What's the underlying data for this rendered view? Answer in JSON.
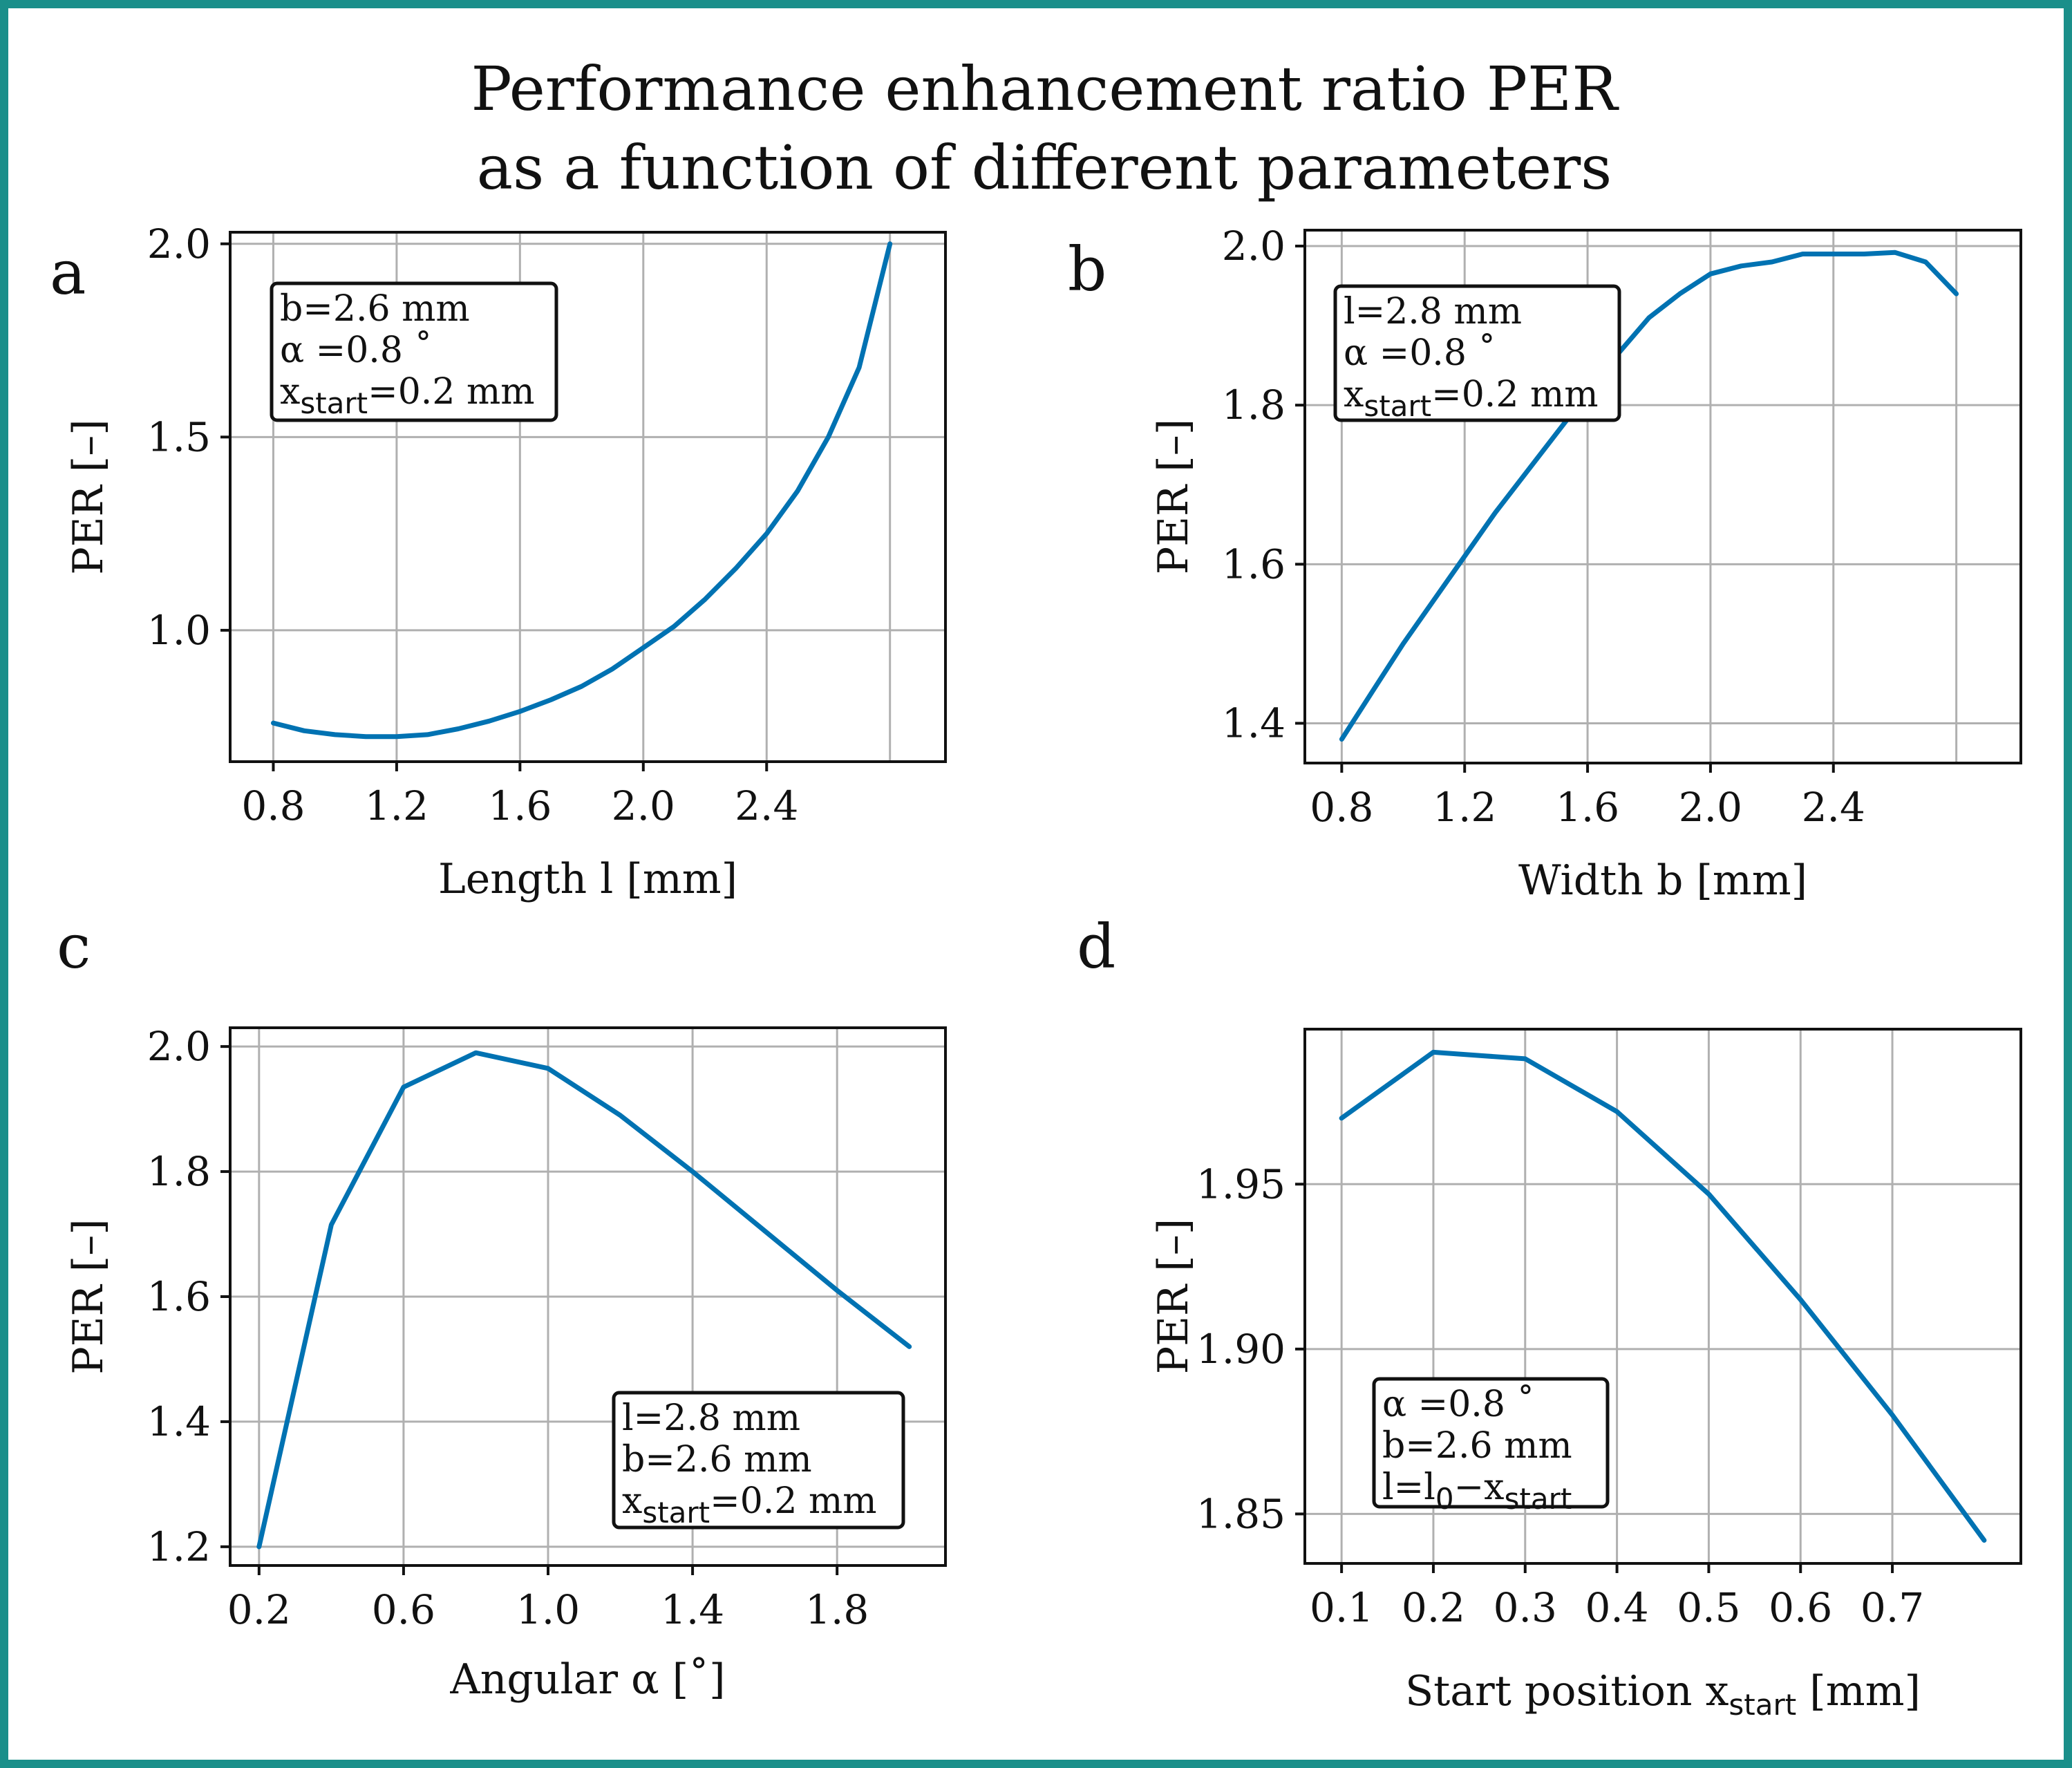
{
  "figure": {
    "title_line1": "Performance enhancement ratio PER",
    "title_line2": "as a function of different parameters",
    "line_color": "#0072b2",
    "border_color": "#1a8f8a"
  },
  "chart_data": [
    {
      "id": "a",
      "panel_label": "a",
      "type": "line",
      "xlabel": "Length l [mm]",
      "ylabel": "PER  [–]",
      "xlim": [
        0.66,
        2.98
      ],
      "ylim": [
        0.66,
        2.03
      ],
      "xticks": [
        0.8,
        1.2,
        1.6,
        2.0,
        2.4
      ],
      "xtick_labels": [
        "0.8",
        "1.2",
        "1.6",
        "2.0",
        "2.4"
      ],
      "yticks": [
        1.0,
        1.5,
        2.0
      ],
      "ytick_labels": [
        "1.0",
        "1.5",
        "2.0"
      ],
      "x_grid": [
        0.8,
        1.2,
        1.6,
        2.0,
        2.4,
        2.8
      ],
      "y_grid": [
        1.0,
        1.5,
        2.0
      ],
      "grid": true,
      "annotation_position": "top-left",
      "annotation": [
        {
          "main": "b=2.6 mm",
          "sub": ""
        },
        {
          "main": "α =0.8 ˚",
          "sub": ""
        },
        {
          "main": "x",
          "sub": "start",
          "tail": "=0.2 mm"
        }
      ],
      "series": [
        {
          "x": [
            0.8,
            0.9,
            1.0,
            1.1,
            1.2,
            1.3,
            1.4,
            1.5,
            1.6,
            1.7,
            1.8,
            1.9,
            2.0,
            2.1,
            2.2,
            2.3,
            2.4,
            2.5,
            2.6,
            2.7,
            2.8
          ],
          "y": [
            0.76,
            0.74,
            0.73,
            0.725,
            0.725,
            0.73,
            0.745,
            0.765,
            0.79,
            0.82,
            0.855,
            0.9,
            0.955,
            1.01,
            1.08,
            1.16,
            1.25,
            1.36,
            1.5,
            1.68,
            2.0
          ]
        }
      ]
    },
    {
      "id": "b",
      "panel_label": "b",
      "type": "line",
      "xlabel": "Width b [mm]",
      "ylabel": "PER  [–]",
      "xlim": [
        0.68,
        3.01
      ],
      "ylim": [
        1.35,
        2.02
      ],
      "xticks": [
        0.8,
        1.2,
        1.6,
        2.0,
        2.4
      ],
      "xtick_labels": [
        "0.8",
        "1.2",
        "1.6",
        "2.0",
        "2.4"
      ],
      "yticks": [
        1.4,
        1.6,
        1.8,
        2.0
      ],
      "ytick_labels": [
        "1.4",
        "1.6",
        "1.8",
        "2.0"
      ],
      "x_grid": [
        0.8,
        1.2,
        1.6,
        2.0,
        2.4,
        2.8
      ],
      "y_grid": [
        1.4,
        1.6,
        1.8,
        2.0
      ],
      "grid": true,
      "annotation_position": "top-left",
      "annotation": [
        {
          "main": "l=2.8 mm",
          "sub": ""
        },
        {
          "main": "α =0.8 ˚",
          "sub": ""
        },
        {
          "main": "x",
          "sub": "start",
          "tail": "=0.2 mm"
        }
      ],
      "series": [
        {
          "x": [
            0.8,
            0.9,
            1.0,
            1.1,
            1.2,
            1.3,
            1.4,
            1.5,
            1.6,
            1.7,
            1.8,
            1.9,
            2.0,
            2.1,
            2.2,
            2.3,
            2.4,
            2.5,
            2.6,
            2.7,
            2.8
          ],
          "y": [
            1.38,
            1.44,
            1.5,
            1.555,
            1.61,
            1.665,
            1.715,
            1.765,
            1.815,
            1.865,
            1.91,
            1.94,
            1.965,
            1.975,
            1.98,
            1.99,
            1.99,
            1.99,
            1.992,
            1.98,
            1.94
          ]
        }
      ]
    },
    {
      "id": "c",
      "panel_label": "c",
      "type": "line",
      "xlabel": "Angular  α  [˚]",
      "ylabel": "PER  [–]",
      "xlim": [
        0.12,
        2.1
      ],
      "ylim": [
        1.17,
        2.03
      ],
      "xticks": [
        0.2,
        0.6,
        1.0,
        1.4,
        1.8
      ],
      "xtick_labels": [
        "0.2",
        "0.6",
        "1.0",
        "1.4",
        "1.8"
      ],
      "yticks": [
        1.2,
        1.4,
        1.6,
        1.8,
        2.0
      ],
      "ytick_labels": [
        "1.2",
        "1.4",
        "1.6",
        "1.8",
        "2.0"
      ],
      "x_grid": [
        0.2,
        0.6,
        1.0,
        1.4,
        1.8
      ],
      "y_grid": [
        1.2,
        1.4,
        1.6,
        1.8,
        2.0
      ],
      "grid": true,
      "annotation_position": "bottom-right",
      "annotation": [
        {
          "main": "l=2.8 mm",
          "sub": ""
        },
        {
          "main": "b=2.6 mm",
          "sub": ""
        },
        {
          "main": "x",
          "sub": "start",
          "tail": "=0.2 mm"
        }
      ],
      "series": [
        {
          "x": [
            0.2,
            0.4,
            0.6,
            0.8,
            1.0,
            1.2,
            1.4,
            1.6,
            1.8,
            2.0
          ],
          "y": [
            1.2,
            1.715,
            1.935,
            1.99,
            1.965,
            1.89,
            1.8,
            1.705,
            1.61,
            1.52
          ]
        }
      ]
    },
    {
      "id": "d",
      "panel_label": "d",
      "type": "line",
      "xlabel": "Start position x",
      "xlabel_sub": "start",
      "xlabel_tail": " [mm]",
      "ylabel": "PER  [–]",
      "xlim": [
        0.06,
        0.84
      ],
      "ylim": [
        1.835,
        1.997
      ],
      "xticks": [
        0.1,
        0.2,
        0.3,
        0.4,
        0.5,
        0.6,
        0.7
      ],
      "xtick_labels": [
        "0.1",
        "0.2",
        "0.3",
        "0.4",
        "0.5",
        "0.6",
        "0.7"
      ],
      "yticks": [
        1.85,
        1.9,
        1.95
      ],
      "ytick_labels": [
        "1.85",
        "1.90",
        "1.95"
      ],
      "x_grid": [
        0.1,
        0.2,
        0.3,
        0.4,
        0.5,
        0.6,
        0.7
      ],
      "y_grid": [
        1.85,
        1.9,
        1.95
      ],
      "grid": true,
      "annotation_position": "bottom-left",
      "annotation": [
        {
          "main": "α =0.8 ˚",
          "sub": ""
        },
        {
          "main": "b=2.6 mm",
          "sub": ""
        },
        {
          "main": "l=l",
          "sub": "0",
          "tail": "−x",
          "sub2": "start"
        }
      ],
      "series": [
        {
          "x": [
            0.1,
            0.2,
            0.3,
            0.4,
            0.5,
            0.6,
            0.7,
            0.8
          ],
          "y": [
            1.97,
            1.99,
            1.988,
            1.972,
            1.947,
            1.915,
            1.88,
            1.842
          ]
        }
      ]
    }
  ]
}
